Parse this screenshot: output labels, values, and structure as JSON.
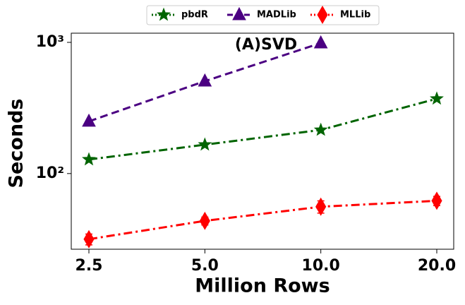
{
  "chart_data": {
    "type": "line",
    "annotation": "(A)SVD",
    "x_label": "Million Rows",
    "y_label": "Seconds",
    "categories": [
      "2.5",
      "5.0",
      "10.0",
      "20.0"
    ],
    "series": [
      {
        "name": "pbdR",
        "color": "#006400",
        "marker": "star",
        "linestyle": "dashdot",
        "values": [
          128,
          166,
          215,
          372
        ]
      },
      {
        "name": "MADLib",
        "color": "#4b0082",
        "marker": "triangle",
        "linestyle": "dashed",
        "values": [
          250,
          506,
          988,
          null
        ]
      },
      {
        "name": "MLLib",
        "color": "#ff0000",
        "marker": "diamond",
        "linestyle": "dashdot",
        "values": [
          31.6,
          43.6,
          55.9,
          62
        ],
        "errors": [
          3,
          3,
          6,
          5
        ]
      }
    ],
    "ylim": [
      26.5,
      1175
    ],
    "log_y": true,
    "yticks": [
      {
        "value": 100,
        "label": "10²"
      },
      {
        "value": 1000,
        "label": "10³"
      }
    ],
    "legend": "upper center"
  }
}
